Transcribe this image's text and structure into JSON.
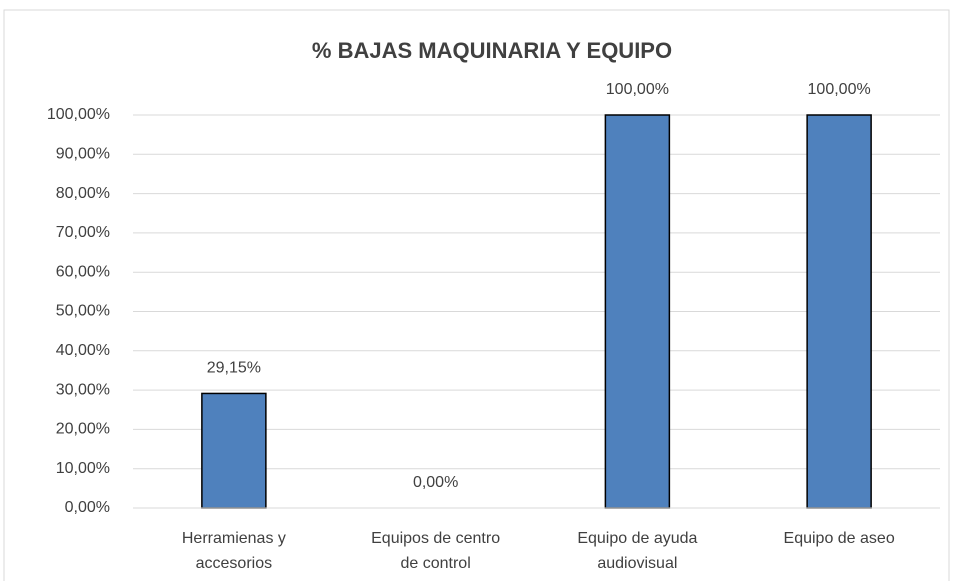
{
  "chart_data": {
    "type": "bar",
    "title": "% BAJAS MAQUINARIA Y EQUIPO",
    "categories": [
      "Herramienas y accesorios",
      "Equipos de centro de control",
      "Equipo de ayuda audiovisual",
      "Equipo de aseo"
    ],
    "values": [
      29.15,
      0,
      100,
      100
    ],
    "value_labels": [
      "29,15%",
      "0,00%",
      "100,00%",
      "100,00%"
    ],
    "color": "#4f81bd",
    "ylim": [
      0,
      100
    ],
    "yticks": [
      {
        "value": 0,
        "label": "0,00%"
      },
      {
        "value": 10,
        "label": "10,00%"
      },
      {
        "value": 20,
        "label": "20,00%"
      },
      {
        "value": 30,
        "label": "30,00%"
      },
      {
        "value": 40,
        "label": "40,00%"
      },
      {
        "value": 50,
        "label": "50,00%"
      },
      {
        "value": 60,
        "label": "60,00%"
      },
      {
        "value": 70,
        "label": "70,00%"
      },
      {
        "value": 80,
        "label": "80,00%"
      },
      {
        "value": 90,
        "label": "90,00%"
      },
      {
        "value": 100,
        "label": "100,00%"
      }
    ],
    "grid": true
  }
}
